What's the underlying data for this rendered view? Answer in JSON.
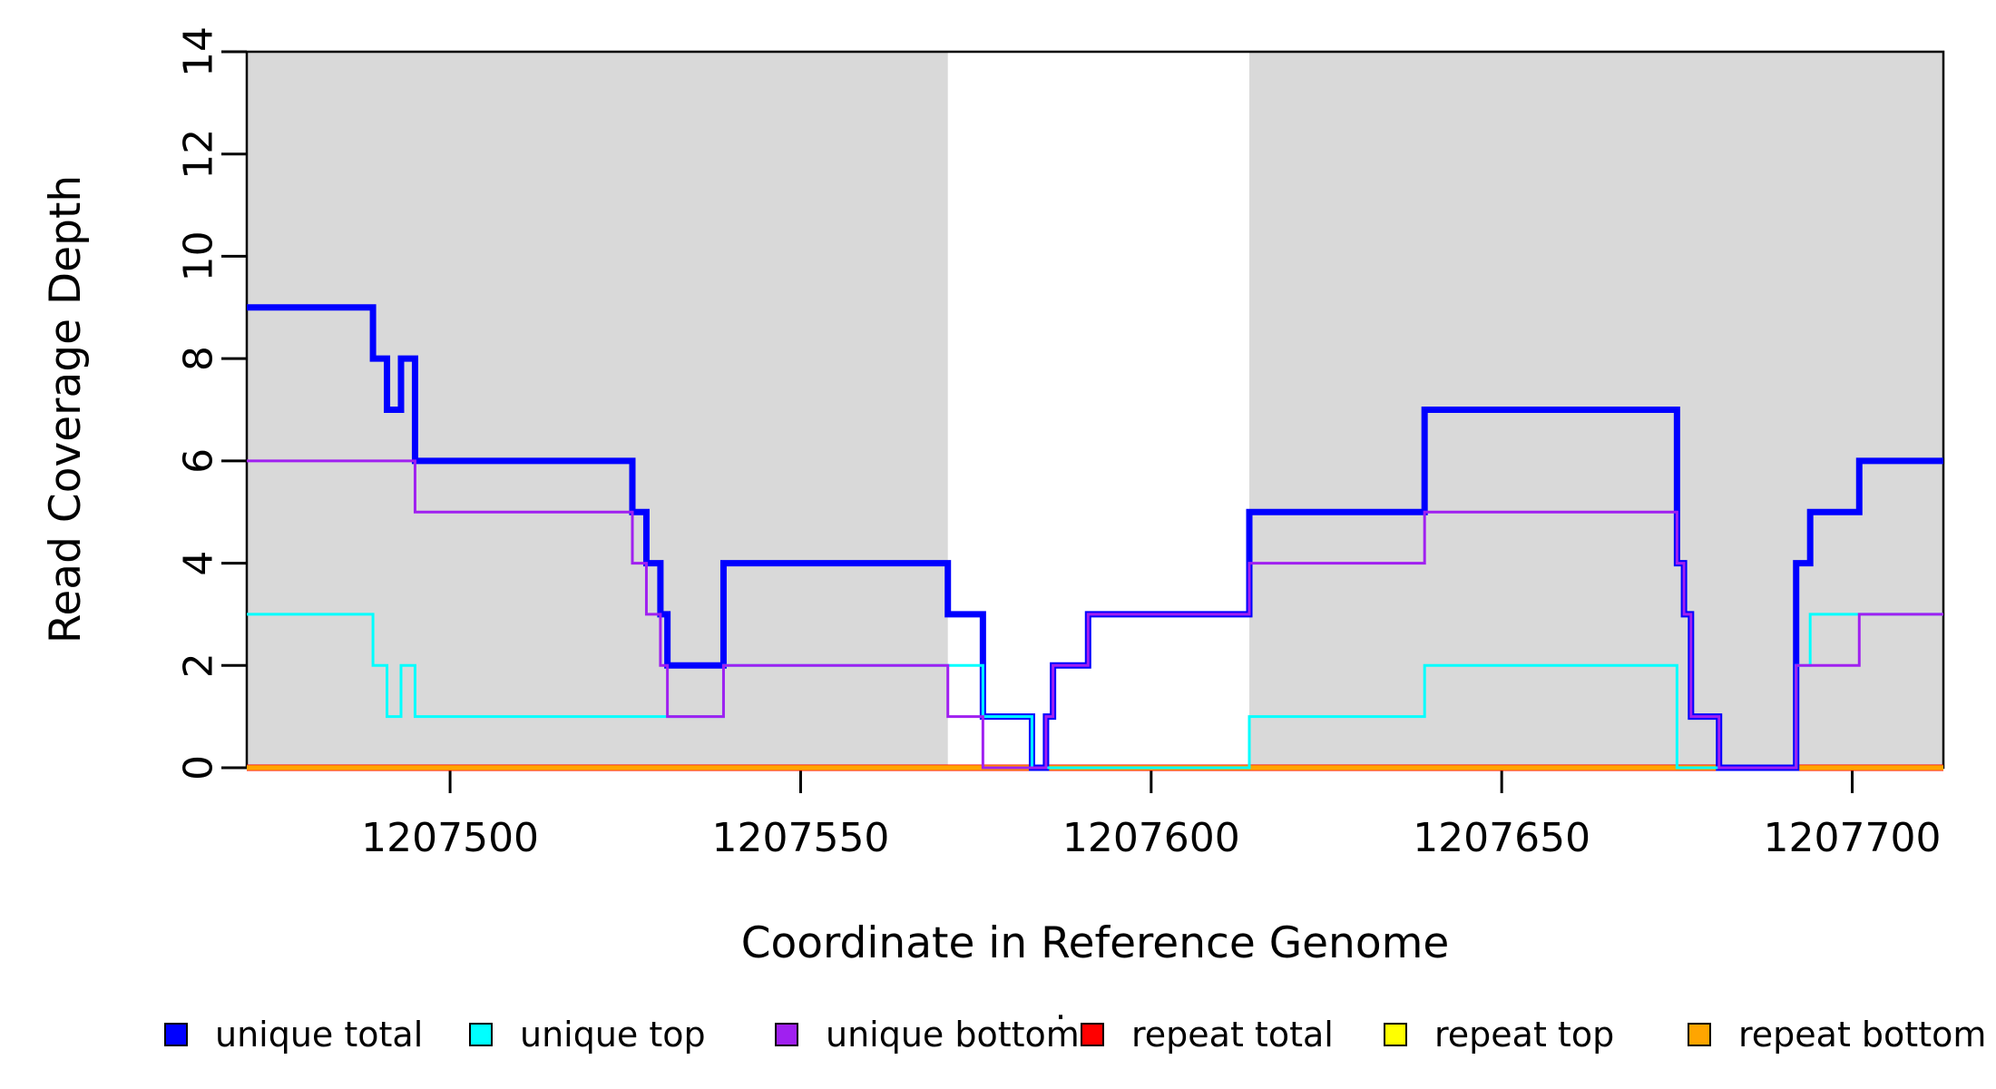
{
  "misc": {
    "title_dot": "."
  },
  "axes": {
    "x": {
      "label": "Coordinate in Reference Genome",
      "ticks": [
        1207500,
        1207550,
        1207600,
        1207650,
        1207700
      ],
      "range": [
        1207471,
        1207713
      ]
    },
    "y": {
      "label": "Read Coverage Depth",
      "ticks": [
        0,
        2,
        4,
        6,
        8,
        10,
        12,
        14
      ],
      "range": [
        0,
        14
      ]
    }
  },
  "shading": {
    "color": "#D9D9D9",
    "bands": [
      [
        1207471,
        1207571
      ],
      [
        1207614,
        1207713
      ]
    ]
  },
  "chart_data": {
    "type": "line",
    "step": true,
    "title": "",
    "xlabel": "Coordinate in Reference Genome",
    "ylabel": "Read Coverage Depth",
    "xlim": [
      1207471,
      1207713
    ],
    "ylim": [
      0,
      14
    ],
    "grid": false,
    "legend_position": "bottom",
    "series": [
      {
        "name": "repeat total",
        "color": "#FF0000",
        "width": 7,
        "points": [
          [
            1207471,
            0
          ]
        ]
      },
      {
        "name": "repeat top",
        "color": "#FFFF00",
        "width": 4,
        "points": [
          [
            1207471,
            0
          ]
        ]
      },
      {
        "name": "repeat bottom",
        "color": "#FFA500",
        "width": 5.5,
        "points": [
          [
            1207471,
            0
          ]
        ]
      },
      {
        "name": "unique total",
        "color": "#0000FF",
        "width": 7,
        "points": [
          [
            1207471,
            9
          ],
          [
            1207489,
            8
          ],
          [
            1207491,
            7
          ],
          [
            1207493,
            8
          ],
          [
            1207495,
            6
          ],
          [
            1207526,
            5
          ],
          [
            1207528,
            4
          ],
          [
            1207530,
            3
          ],
          [
            1207531,
            2
          ],
          [
            1207539,
            4
          ],
          [
            1207571,
            3
          ],
          [
            1207576,
            1
          ],
          [
            1207583,
            0
          ],
          [
            1207585,
            1
          ],
          [
            1207586,
            2
          ],
          [
            1207591,
            3
          ],
          [
            1207614,
            5
          ],
          [
            1207639,
            7
          ],
          [
            1207675,
            4
          ],
          [
            1207676,
            3
          ],
          [
            1207677,
            1
          ],
          [
            1207681,
            0
          ],
          [
            1207692,
            4
          ],
          [
            1207694,
            5
          ],
          [
            1207701,
            6
          ]
        ]
      },
      {
        "name": "unique top",
        "color": "#00FFFF",
        "width": 3,
        "points": [
          [
            1207471,
            3
          ],
          [
            1207489,
            2
          ],
          [
            1207491,
            1
          ],
          [
            1207493,
            2
          ],
          [
            1207495,
            1
          ],
          [
            1207539,
            2
          ],
          [
            1207576,
            1
          ],
          [
            1207583,
            0
          ],
          [
            1207614,
            1
          ],
          [
            1207639,
            2
          ],
          [
            1207675,
            0
          ],
          [
            1207692,
            2
          ],
          [
            1207694,
            3
          ]
        ]
      },
      {
        "name": "unique bottom",
        "color": "#A020F0",
        "width": 3,
        "points": [
          [
            1207471,
            6
          ],
          [
            1207495,
            5
          ],
          [
            1207526,
            4
          ],
          [
            1207528,
            3
          ],
          [
            1207530,
            2
          ],
          [
            1207531,
            1
          ],
          [
            1207539,
            2
          ],
          [
            1207571,
            1
          ],
          [
            1207576,
            0
          ],
          [
            1207585,
            1
          ],
          [
            1207586,
            2
          ],
          [
            1207591,
            3
          ],
          [
            1207614,
            4
          ],
          [
            1207639,
            5
          ],
          [
            1207675,
            4
          ],
          [
            1207676,
            3
          ],
          [
            1207677,
            1
          ],
          [
            1207681,
            0
          ],
          [
            1207692,
            2
          ],
          [
            1207701,
            3
          ]
        ]
      }
    ]
  },
  "legend": {
    "items": [
      {
        "label": "unique total",
        "color": "#0000FF"
      },
      {
        "label": "unique top",
        "color": "#00FFFF"
      },
      {
        "label": "unique bottom",
        "color": "#A020F0"
      },
      {
        "label": "repeat total",
        "color": "#FF0000"
      },
      {
        "label": "repeat top",
        "color": "#FFFF00"
      },
      {
        "label": "repeat bottom",
        "color": "#FFA500"
      }
    ]
  }
}
